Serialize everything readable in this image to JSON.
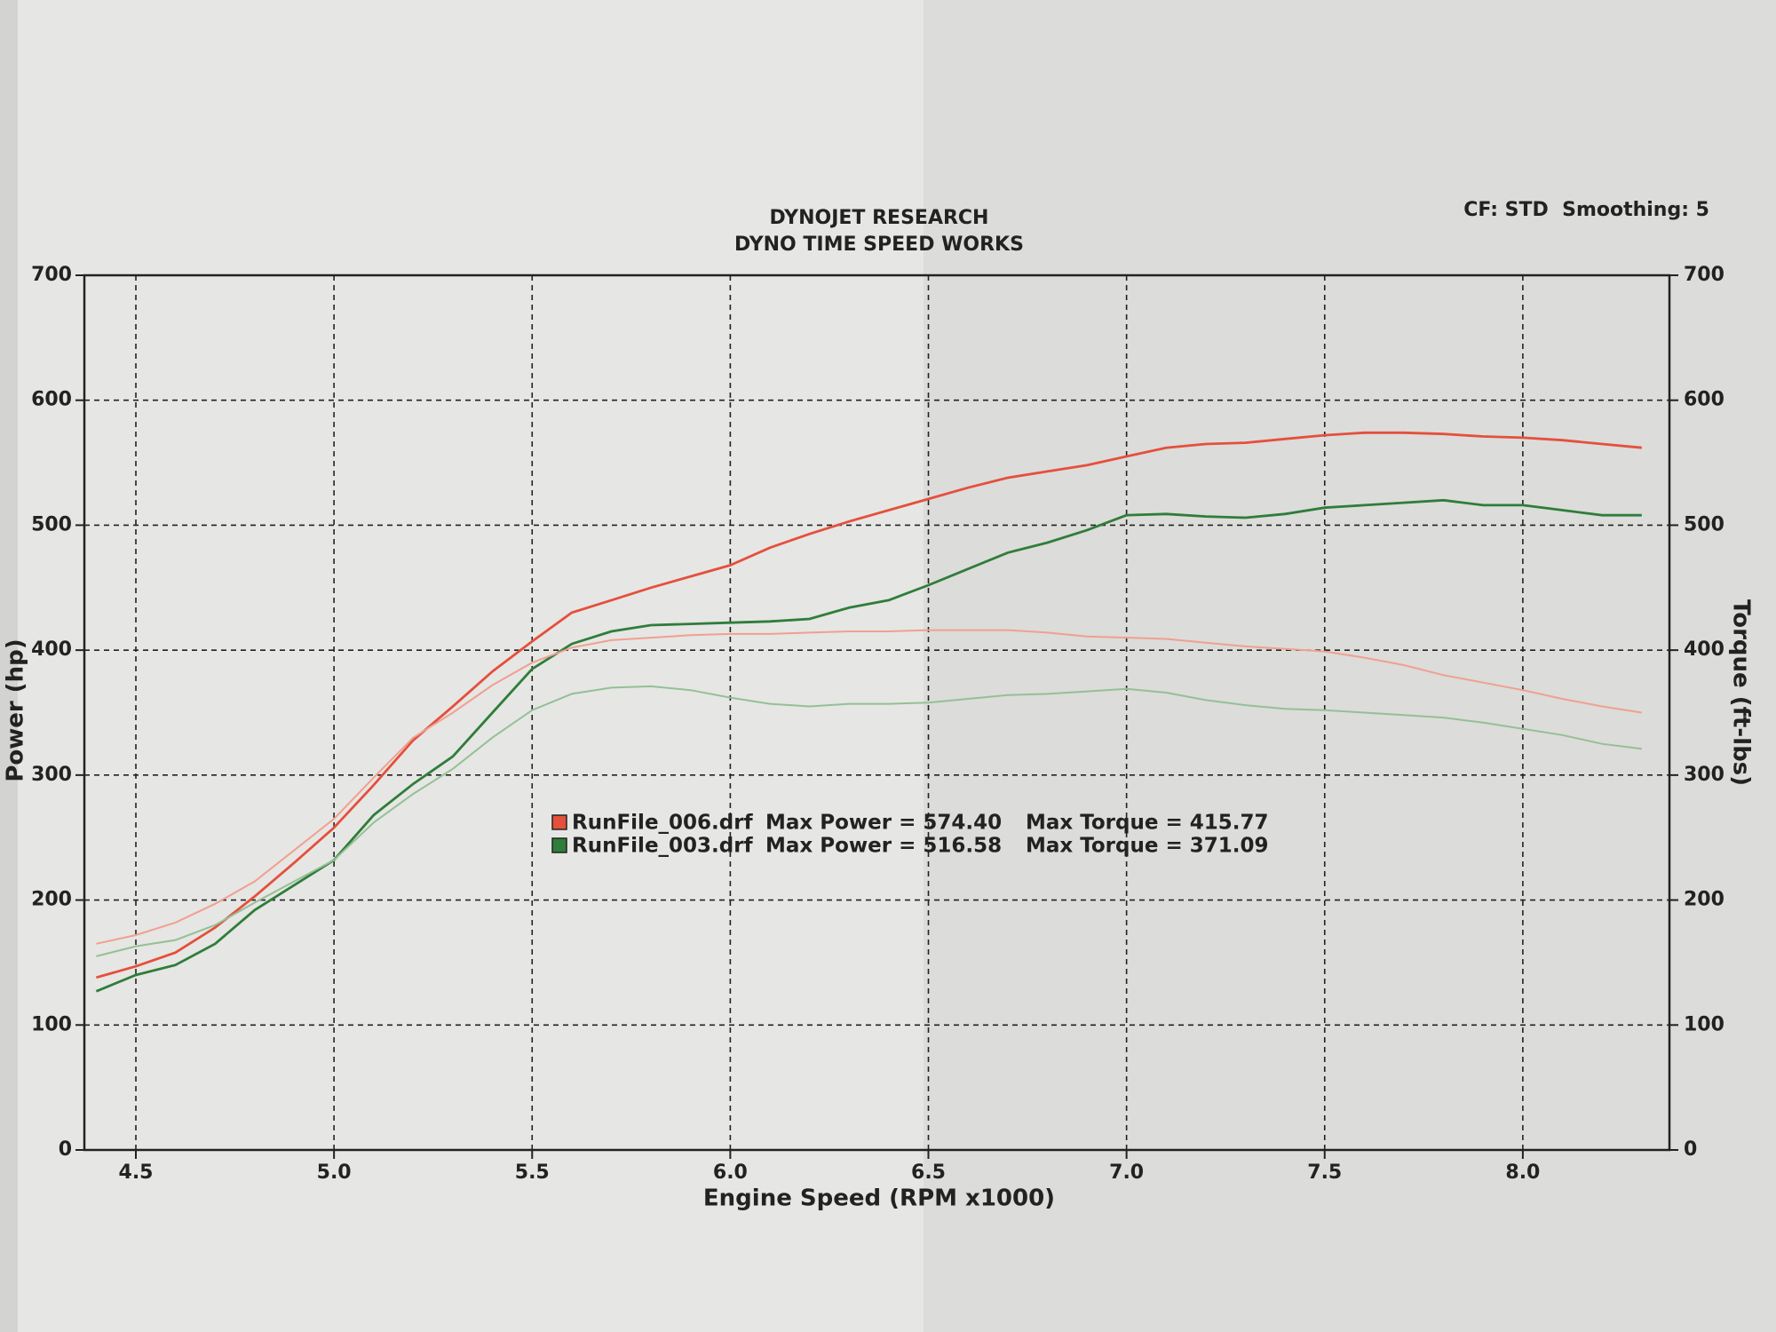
{
  "chart_data": {
    "type": "line",
    "title": "DYNOJET RESEARCH",
    "subtitle": "DYNO TIME SPEED WORKS",
    "settings_text": "CF: STD  Smoothing: 5",
    "x_label": "Engine Speed (RPM x1000)",
    "y_label": "Power (hp)",
    "y2_label": "Torque (ft-lbs)",
    "grid": true,
    "x": [
      4.4,
      4.5,
      4.6,
      4.7,
      4.8,
      4.9,
      5.0,
      5.1,
      5.2,
      5.3,
      5.4,
      5.5,
      5.6,
      5.7,
      5.8,
      5.9,
      6.0,
      6.1,
      6.2,
      6.3,
      6.4,
      6.5,
      6.6,
      6.7,
      6.8,
      6.9,
      7.0,
      7.1,
      7.2,
      7.3,
      7.4,
      7.5,
      7.6,
      7.7,
      7.8,
      7.9,
      8.0,
      8.1,
      8.2,
      8.3
    ],
    "xlim": [
      4.37,
      8.37
    ],
    "xticks": [
      4.5,
      {
        "value": 5,
        "label": "5.0"
      },
      5.5,
      {
        "value": 6,
        "label": "6.0"
      },
      6.5,
      {
        "value": 7,
        "label": "7.0"
      },
      7.5,
      {
        "value": 8,
        "label": "8.0"
      }
    ],
    "ylim": [
      0,
      700
    ],
    "yticks": [
      0,
      100,
      200,
      300,
      400,
      500,
      600,
      700
    ],
    "y2lim": [
      0,
      700
    ],
    "y2ticks": [
      0,
      100,
      200,
      300,
      400,
      500,
      600,
      700
    ],
    "series": [
      {
        "name": "RunFile_006.drf",
        "color": "#e4503c",
        "axis": "y",
        "values": [
          138,
          147,
          158,
          178,
          203,
          230,
          258,
          292,
          328,
          355,
          383,
          407,
          430,
          440,
          450,
          459,
          468,
          482,
          493,
          503,
          512,
          521,
          530,
          538,
          543,
          548,
          555,
          562,
          565,
          566,
          569,
          572,
          574,
          574,
          573,
          571,
          570,
          568,
          565,
          562
        ]
      },
      {
        "name": "RunFile_003.drf",
        "color": "#2f7d3a",
        "axis": "y",
        "values": [
          127,
          140,
          148,
          165,
          192,
          212,
          232,
          268,
          293,
          315,
          350,
          385,
          405,
          415,
          420,
          421,
          422,
          423,
          425,
          434,
          440,
          452,
          465,
          478,
          486,
          496,
          508,
          509,
          507,
          506,
          509,
          514,
          516,
          518,
          520,
          516,
          516,
          512,
          508,
          508
        ]
      },
      {
        "color": "#f0a090",
        "axis": "y2",
        "values": [
          165,
          172,
          182,
          197,
          215,
          240,
          265,
          298,
          330,
          350,
          372,
          390,
          402,
          408,
          410,
          412,
          413,
          413,
          414,
          415,
          415,
          416,
          416,
          416,
          414,
          411,
          410,
          409,
          406,
          403,
          401,
          399,
          394,
          388,
          380,
          374,
          368,
          361,
          355,
          350
        ]
      },
      {
        "color": "#94c096",
        "axis": "y2",
        "values": [
          155,
          163,
          168,
          180,
          198,
          215,
          232,
          262,
          285,
          305,
          330,
          352,
          365,
          370,
          371,
          368,
          362,
          357,
          355,
          357,
          357,
          358,
          361,
          364,
          365,
          367,
          369,
          366,
          360,
          356,
          353,
          352,
          350,
          348,
          346,
          342,
          337,
          332,
          325,
          321
        ]
      }
    ],
    "legend_stats": [
      {
        "max_power": "Max Power = 574.40",
        "max_torque": "Max Torque = 415.77"
      },
      {
        "max_power": "Max Power = 516.58",
        "max_torque": "Max Torque = 371.09"
      }
    ]
  }
}
